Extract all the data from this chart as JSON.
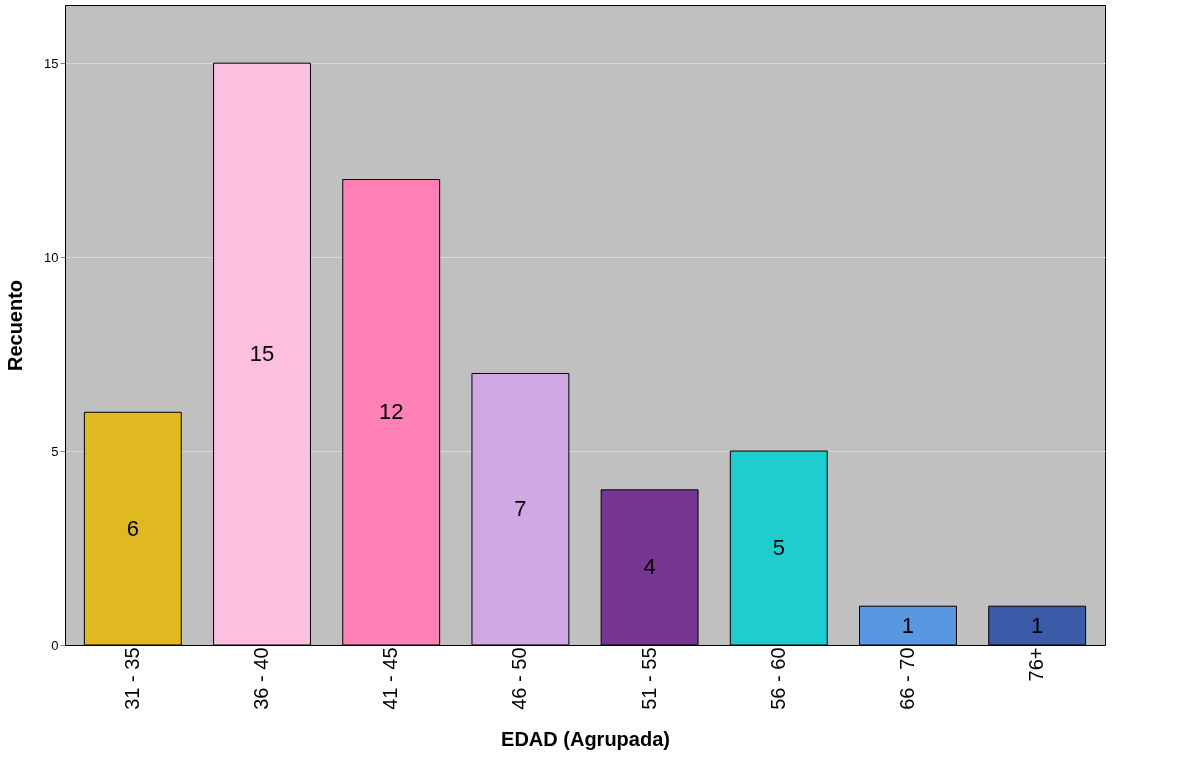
{
  "chart_data": {
    "type": "bar",
    "xlabel": "EDAD (Agrupada)",
    "ylabel": "Recuento",
    "categories": [
      "31 - 35",
      "36 - 40",
      "41 - 45",
      "46 - 50",
      "51 - 55",
      "56 - 60",
      "66 - 70",
      "76+"
    ],
    "values": [
      6,
      15,
      12,
      7,
      4,
      5,
      1,
      1
    ],
    "colors": [
      "#e0b820",
      "#fdbfe0",
      "#fe80b4",
      "#d0a8e4",
      "#763590",
      "#1ecdcd",
      "#5898e0",
      "#3b5aa8"
    ],
    "ylim": [
      0,
      16.5
    ],
    "yticks": [
      0,
      5,
      10,
      15
    ],
    "grid": "y",
    "data_labels": true
  }
}
